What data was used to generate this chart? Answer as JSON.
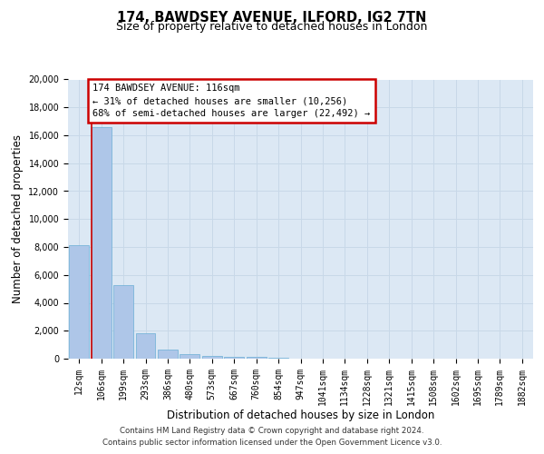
{
  "title_line1": "174, BAWDSEY AVENUE, ILFORD, IG2 7TN",
  "title_line2": "Size of property relative to detached houses in London",
  "xlabel": "Distribution of detached houses by size in London",
  "ylabel": "Number of detached properties",
  "categories": [
    "12sqm",
    "106sqm",
    "199sqm",
    "293sqm",
    "386sqm",
    "480sqm",
    "573sqm",
    "667sqm",
    "760sqm",
    "854sqm",
    "947sqm",
    "1041sqm",
    "1134sqm",
    "1228sqm",
    "1321sqm",
    "1415sqm",
    "1508sqm",
    "1602sqm",
    "1695sqm",
    "1789sqm",
    "1882sqm"
  ],
  "values": [
    8100,
    16600,
    5300,
    1800,
    650,
    330,
    185,
    130,
    100,
    70,
    0,
    0,
    0,
    0,
    0,
    0,
    0,
    0,
    0,
    0,
    0
  ],
  "ylim": [
    0,
    20000
  ],
  "yticks": [
    0,
    2000,
    4000,
    6000,
    8000,
    10000,
    12000,
    14000,
    16000,
    18000,
    20000
  ],
  "bar_color": "#aec6e8",
  "bar_edge_color": "#6aaed6",
  "grid_color": "#c8d8e8",
  "bg_color": "#dce8f4",
  "property_line_color": "#cc0000",
  "annotation_line1": "174 BAWDSEY AVENUE: 116sqm",
  "annotation_line2": "← 31% of detached houses are smaller (10,256)",
  "annotation_line3": "68% of semi-detached houses are larger (22,492) →",
  "annotation_box_color": "#cc0000",
  "footnote": "Contains HM Land Registry data © Crown copyright and database right 2024.\nContains public sector information licensed under the Open Government Licence v3.0.",
  "title_fontsize": 10.5,
  "subtitle_fontsize": 9,
  "axis_label_fontsize": 8.5,
  "tick_fontsize": 7,
  "annotation_fontsize": 7.5
}
